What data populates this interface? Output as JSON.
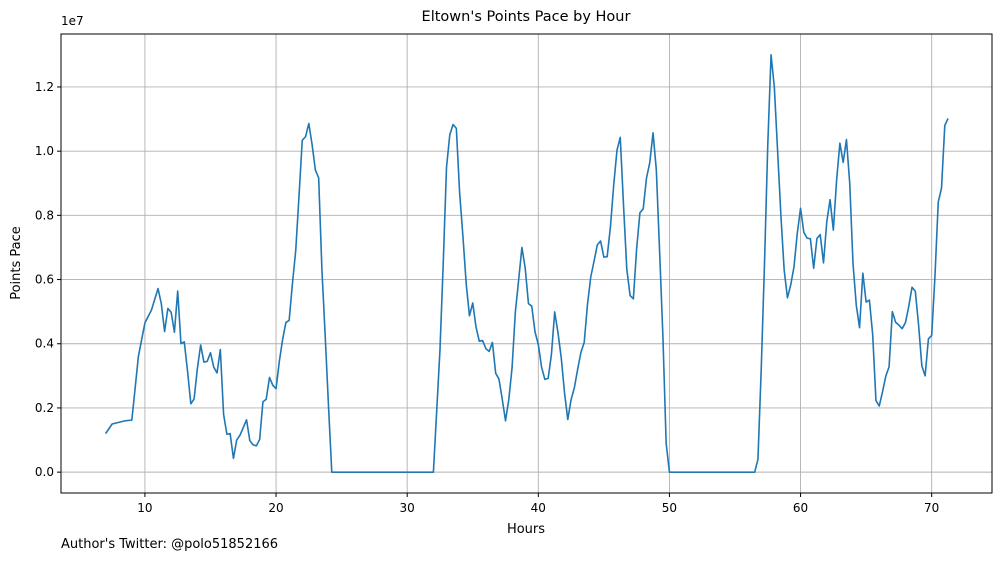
{
  "footer": {
    "text": "Author's Twitter: @polo51852166"
  },
  "colors": {
    "line": "#1f77b4",
    "grid": "#b0b0b0",
    "axes": "#000000",
    "background": "#ffffff"
  },
  "chart_data": {
    "type": "line",
    "title": "Eltown's Points Pace by Hour",
    "xlabel": "Hours",
    "ylabel": "Points Pace",
    "offset_label": "1e7",
    "xlim": [
      3.6,
      74.6
    ],
    "ylim": [
      -650000,
      13650000
    ],
    "xticks": [
      10,
      20,
      30,
      40,
      50,
      60,
      70
    ],
    "xtick_labels": [
      "10",
      "20",
      "30",
      "40",
      "50",
      "60",
      "70"
    ],
    "yticks": [
      0,
      2000000,
      4000000,
      6000000,
      8000000,
      10000000,
      12000000
    ],
    "ytick_labels": [
      "0.0",
      "0.2",
      "0.4",
      "0.6",
      "0.8",
      "1.0",
      "1.2"
    ],
    "grid": true,
    "series": [
      {
        "x": [
          7.0,
          7.5,
          8.0,
          8.5,
          9.0,
          9.2,
          9.5,
          10.0,
          10.5,
          11.0,
          11.25,
          11.5,
          11.75,
          12.0,
          12.25,
          12.5,
          12.75,
          13.0,
          13.25,
          13.5,
          13.75,
          14.0,
          14.25,
          14.5,
          14.75,
          15.0,
          15.25,
          15.5,
          15.75,
          16.0,
          16.25,
          16.5,
          16.75,
          17.0,
          17.25,
          17.5,
          17.75,
          18.0,
          18.25,
          18.5,
          18.75,
          19.0,
          19.25,
          19.5,
          19.75,
          20.0,
          20.25,
          20.5,
          20.75,
          21.0,
          21.25,
          21.5,
          21.75,
          22.0,
          22.25,
          22.5,
          22.75,
          23.0,
          23.25,
          23.5,
          23.75,
          24.0,
          24.25,
          25.0,
          26.0,
          27.0,
          28.0,
          29.0,
          30.0,
          31.0,
          32.0,
          32.25,
          32.5,
          32.75,
          33.0,
          33.25,
          33.5,
          33.75,
          34.0,
          34.25,
          34.5,
          34.75,
          35.0,
          35.25,
          35.5,
          35.75,
          36.0,
          36.25,
          36.5,
          36.75,
          37.0,
          37.25,
          37.5,
          37.75,
          38.0,
          38.25,
          38.5,
          38.75,
          39.0,
          39.25,
          39.5,
          39.75,
          40.0,
          40.25,
          40.5,
          40.75,
          41.0,
          41.25,
          41.5,
          41.75,
          42.0,
          42.25,
          42.5,
          42.75,
          43.0,
          43.25,
          43.5,
          43.75,
          44.0,
          44.25,
          44.5,
          44.75,
          45.0,
          45.25,
          45.5,
          45.75,
          46.0,
          46.25,
          46.5,
          46.75,
          47.0,
          47.25,
          47.5,
          47.75,
          48.0,
          48.25,
          48.5,
          48.75,
          49.0,
          49.25,
          49.5,
          49.75,
          50.0,
          51.0,
          52.0,
          53.0,
          54.0,
          55.0,
          56.0,
          56.5,
          56.75,
          57.0,
          57.25,
          57.5,
          57.75,
          58.0,
          58.25,
          58.5,
          58.75,
          59.0,
          59.25,
          59.5,
          59.75,
          60.0,
          60.25,
          60.5,
          60.75,
          61.0,
          61.25,
          61.5,
          61.75,
          62.0,
          62.25,
          62.5,
          62.75,
          63.0,
          63.25,
          63.5,
          63.75,
          64.0,
          64.25,
          64.5,
          64.75,
          65.0,
          65.25,
          65.5,
          65.75,
          66.0,
          66.25,
          66.5,
          66.75,
          67.0,
          67.25,
          67.5,
          67.75,
          68.0,
          68.25,
          68.5,
          68.75,
          69.0,
          69.25,
          69.5,
          69.75,
          70.0,
          70.25,
          70.5,
          70.75,
          71.0,
          71.25
        ],
        "values": [
          1200000,
          1500000,
          1550000,
          1600000,
          1620000,
          2400000,
          3600000,
          4650000,
          5050000,
          5720000,
          5250000,
          4380000,
          5100000,
          4980000,
          4360000,
          5640000,
          4000000,
          4060000,
          3150000,
          2130000,
          2280000,
          3230000,
          3960000,
          3430000,
          3450000,
          3720000,
          3270000,
          3090000,
          3820000,
          1800000,
          1180000,
          1200000,
          430000,
          1000000,
          1150000,
          1390000,
          1630000,
          980000,
          850000,
          820000,
          1020000,
          2190000,
          2270000,
          2950000,
          2710000,
          2600000,
          3450000,
          4130000,
          4660000,
          4730000,
          5880000,
          6900000,
          8600000,
          10340000,
          10450000,
          10860000,
          10200000,
          9410000,
          9170000,
          6290000,
          4230000,
          2060000,
          0,
          0,
          0,
          0,
          0,
          0,
          0,
          0,
          0,
          1900000,
          3800000,
          6500000,
          9500000,
          10510000,
          10830000,
          10710000,
          8700000,
          7360000,
          5880000,
          4870000,
          5270000,
          4520000,
          4080000,
          4100000,
          3850000,
          3760000,
          4040000,
          3080000,
          2900000,
          2270000,
          1600000,
          2260000,
          3260000,
          4990000,
          5980000,
          7000000,
          6360000,
          5250000,
          5170000,
          4370000,
          3980000,
          3270000,
          2890000,
          2920000,
          3660000,
          4990000,
          4350000,
          3560000,
          2470000,
          1640000,
          2260000,
          2630000,
          3200000,
          3730000,
          4040000,
          5220000,
          6080000,
          6570000,
          7080000,
          7200000,
          6700000,
          6710000,
          7640000,
          8940000,
          10030000,
          10430000,
          8310000,
          6320000,
          5500000,
          5400000,
          6970000,
          8080000,
          8200000,
          9160000,
          9640000,
          10570000,
          9420000,
          6880000,
          4270000,
          900000,
          0,
          0,
          0,
          0,
          0,
          0,
          0,
          0,
          400000,
          3200000,
          6500000,
          10200000,
          13000000,
          12000000,
          10000000,
          8000000,
          6300000,
          5430000,
          5830000,
          6400000,
          7440000,
          8220000,
          7470000,
          7290000,
          7270000,
          6350000,
          7280000,
          7400000,
          6520000,
          7800000,
          8490000,
          7540000,
          9100000,
          10250000,
          9650000,
          10360000,
          9000000,
          6500000,
          5200000,
          4500000,
          6200000,
          5300000,
          5360000,
          4290000,
          2230000,
          2060000,
          2500000,
          2990000,
          3280000,
          5000000,
          4670000,
          4580000,
          4470000,
          4660000,
          5160000,
          5760000,
          5640000,
          4590000,
          3310000,
          3000000,
          4150000,
          4260000,
          6100000,
          8410000,
          8850000,
          10800000,
          11020000
        ]
      }
    ]
  }
}
